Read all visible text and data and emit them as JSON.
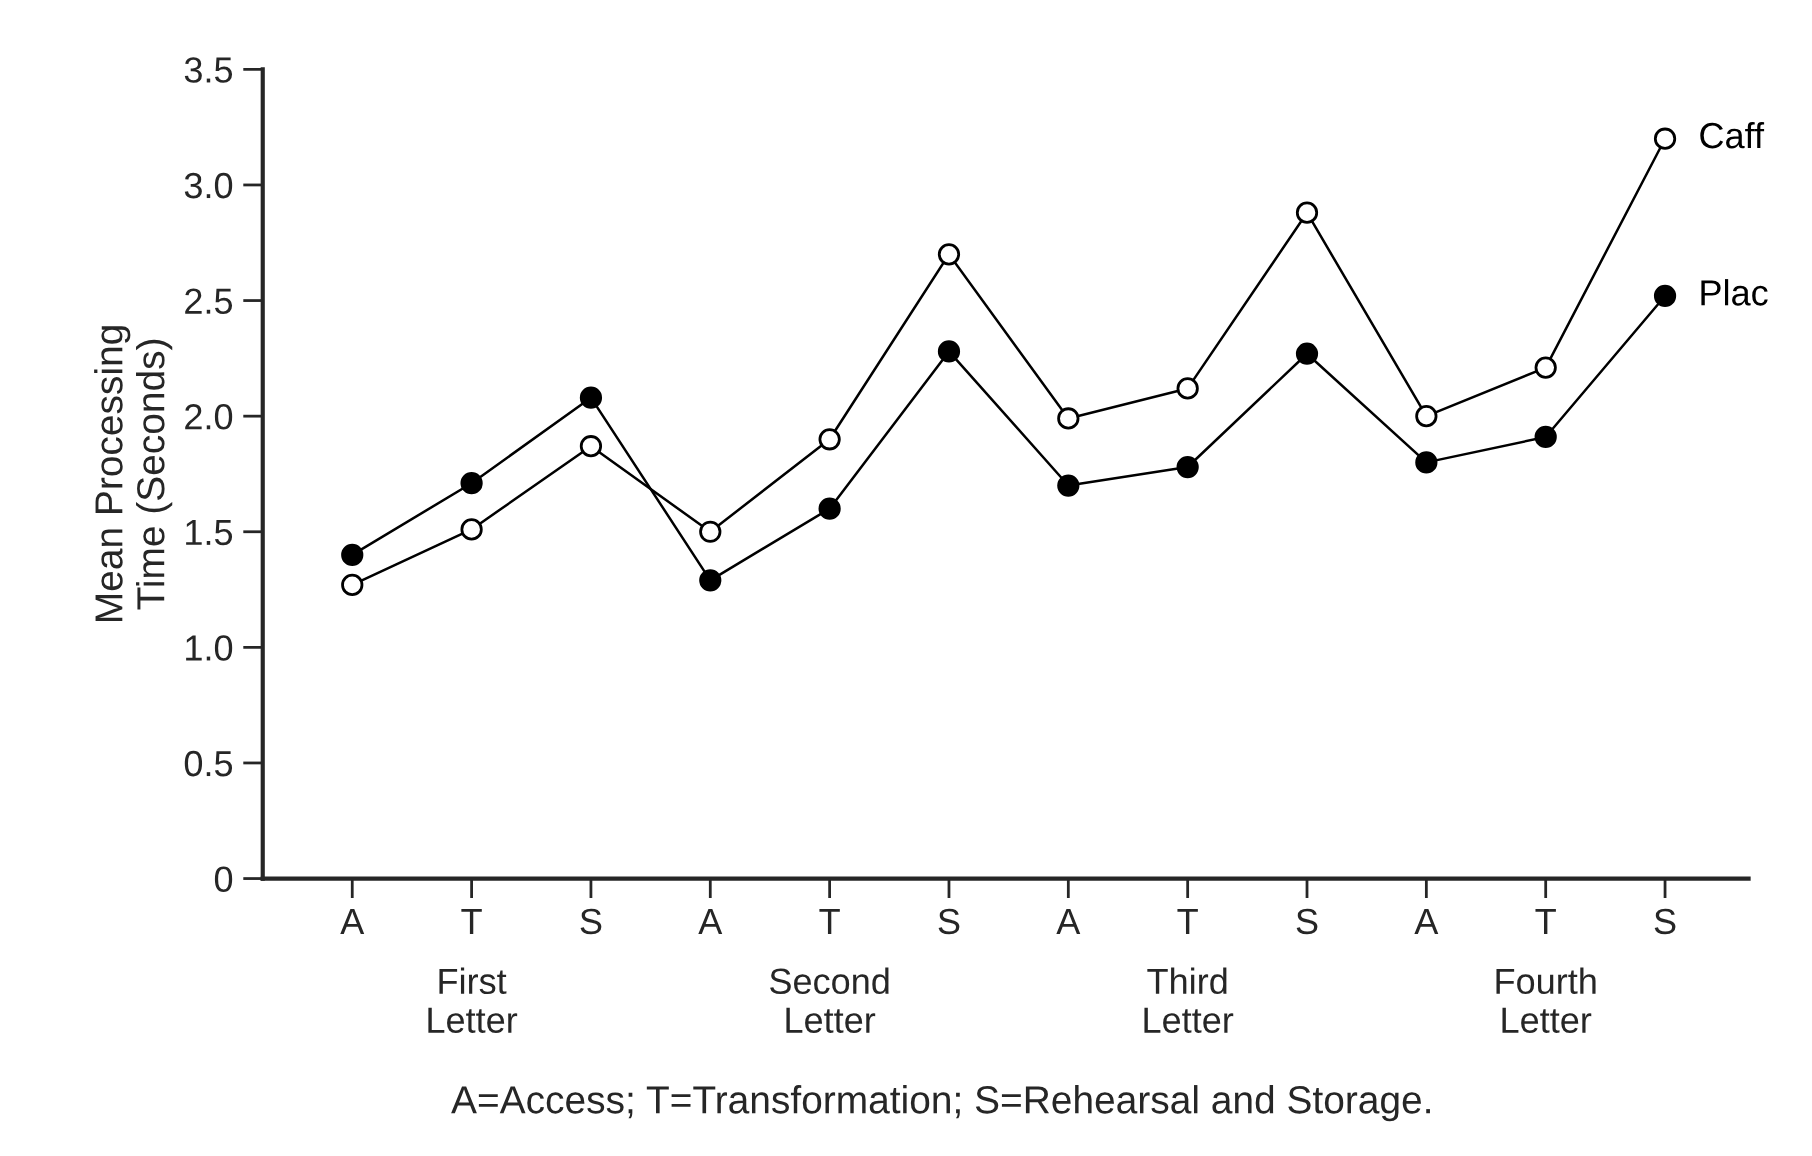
{
  "chart_data": {
    "type": "line",
    "ylabel": "Mean Processing\nTime (Seconds)",
    "categories": [
      "A",
      "T",
      "S",
      "A",
      "T",
      "S",
      "A",
      "T",
      "S",
      "A",
      "T",
      "S"
    ],
    "series": [
      {
        "name": "Caff",
        "color": "#000000",
        "values": [
          1.27,
          1.51,
          1.87,
          1.5,
          1.9,
          2.7,
          1.99,
          2.12,
          2.88,
          2.0,
          2.21,
          3.2
        ]
      },
      {
        "name": "Plac",
        "color": "#000000",
        "values": [
          1.4,
          1.71,
          2.08,
          1.29,
          1.6,
          2.28,
          1.7,
          1.78,
          2.27,
          1.8,
          1.91,
          2.52
        ]
      }
    ],
    "ylim": [
      0,
      3.5
    ],
    "yticks": [
      0,
      0.5,
      {
        "value": 1,
        "label": "1.0"
      },
      1.5,
      {
        "value": 2,
        "label": "2.0"
      },
      2.5,
      {
        "value": 3,
        "label": "3.0"
      },
      3.5
    ],
    "annotations": [
      "First\nLetter",
      "Second\nLetter",
      "Third\nLetter",
      "Fourth\nLetter",
      "A=Access; T=Transformation; S=Rehearsal and Storage."
    ],
    "marker": "circle",
    "line_style": "solid",
    "grid": false,
    "legend": false
  }
}
